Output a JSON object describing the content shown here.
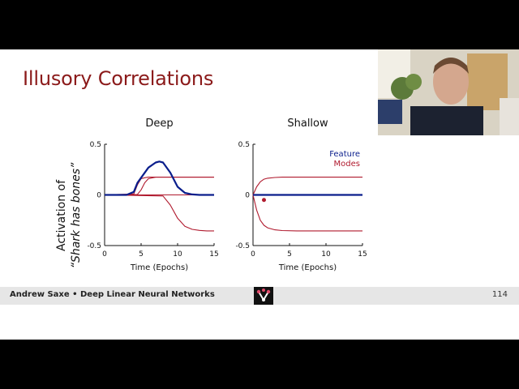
{
  "slide": {
    "title": "Illusory Correlations",
    "footer": "Andrew Saxe • Deep Linear Neural Networks",
    "page_number": "114",
    "ylabel_line1": "Activation of",
    "ylabel_line2": "“Shark has bones”"
  },
  "colors": {
    "title": "#8b1a1a",
    "feature": "#0a1e8c",
    "modes": "#b01a2e"
  },
  "chart_data": [
    {
      "type": "line",
      "title": "Deep",
      "xlabel": "Time (Epochs)",
      "xlim": [
        0,
        15
      ],
      "ylim": [
        -0.5,
        0.5
      ],
      "xticks": [
        "0",
        "5",
        "10",
        "15"
      ],
      "yticks": [
        "0.5",
        "0",
        "-0.5"
      ],
      "series": [
        {
          "role": "feature",
          "x": [
            0,
            3,
            4,
            4.5,
            5,
            6,
            7,
            7.5,
            8,
            9,
            10,
            11,
            12,
            13,
            14,
            15
          ],
          "y": [
            0,
            0,
            0.03,
            0.12,
            0.17,
            0.27,
            0.32,
            0.33,
            0.32,
            0.22,
            0.08,
            0.02,
            0.005,
            0,
            0,
            0
          ]
        },
        {
          "role": "mode",
          "x": [
            0,
            4,
            4.5,
            5,
            5.5,
            6,
            7,
            8,
            10,
            15
          ],
          "y": [
            0,
            0.01,
            0.1,
            0.16,
            0.17,
            0.175,
            0.175,
            0.175,
            0.175,
            0.175
          ]
        },
        {
          "role": "mode",
          "x": [
            0,
            4.5,
            5,
            5.5,
            6,
            7,
            8,
            10,
            15
          ],
          "y": [
            0,
            0.005,
            0.05,
            0.12,
            0.16,
            0.175,
            0.175,
            0.175,
            0.175
          ]
        },
        {
          "role": "mode",
          "x": [
            0,
            8,
            9,
            10,
            11,
            12,
            13,
            14,
            15
          ],
          "y": [
            0,
            -0.01,
            -0.1,
            -0.23,
            -0.31,
            -0.34,
            -0.35,
            -0.355,
            -0.355
          ]
        },
        {
          "role": "mode",
          "x": [
            0,
            15
          ],
          "y": [
            0,
            0
          ]
        }
      ]
    },
    {
      "type": "line",
      "title": "Shallow",
      "xlabel": "Time (Epochs)",
      "xlim": [
        0,
        15
      ],
      "ylim": [
        -0.5,
        0.5
      ],
      "xticks": [
        "0",
        "5",
        "10",
        "15"
      ],
      "yticks": [
        "0.5",
        "0",
        "-0.5"
      ],
      "legend": [
        "Feature",
        "Modes"
      ],
      "marker": {
        "x": 1.5,
        "y": -0.05
      },
      "series": [
        {
          "role": "mode",
          "x": [
            0,
            0.5,
            1,
            1.5,
            2,
            3,
            4,
            6,
            8,
            15
          ],
          "y": [
            0,
            0.08,
            0.13,
            0.155,
            0.165,
            0.172,
            0.175,
            0.175,
            0.175,
            0.175
          ]
        },
        {
          "role": "mode",
          "x": [
            0,
            0.5,
            1,
            1.5,
            2,
            3,
            4,
            6,
            8,
            15
          ],
          "y": [
            0,
            -0.15,
            -0.25,
            -0.3,
            -0.325,
            -0.345,
            -0.352,
            -0.355,
            -0.355,
            -0.355
          ]
        },
        {
          "role": "mode",
          "x": [
            0,
            15
          ],
          "y": [
            0,
            0
          ]
        },
        {
          "role": "feature",
          "x": [
            0,
            15
          ],
          "y": [
            0,
            0
          ]
        }
      ]
    }
  ]
}
